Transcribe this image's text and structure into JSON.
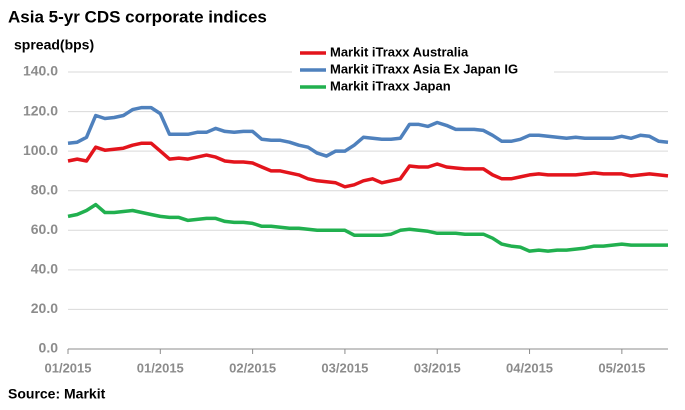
{
  "chart_data": {
    "type": "line",
    "title": "Asia 5-yr CDS corporate indices",
    "y_label": "spread(bps)",
    "source": "Source: Markit",
    "categories": [
      "01/2015",
      null,
      null,
      null,
      null,
      null,
      null,
      null,
      null,
      null,
      "01/2015",
      null,
      null,
      null,
      null,
      null,
      null,
      null,
      null,
      null,
      "02/2015",
      null,
      null,
      null,
      null,
      null,
      null,
      null,
      null,
      null,
      "03/2015",
      null,
      null,
      null,
      null,
      null,
      null,
      null,
      null,
      null,
      "03/2015",
      null,
      null,
      null,
      null,
      null,
      null,
      null,
      null,
      null,
      "04/2015",
      null,
      null,
      null,
      null,
      null,
      null,
      null,
      null,
      null,
      "05/2015",
      null,
      null,
      null,
      null,
      null
    ],
    "series": [
      {
        "name": "Markit iTraxx Australia",
        "color": "#e3141c",
        "values": [
          95,
          96,
          95,
          102,
          100.5,
          101,
          101.5,
          103,
          104,
          104,
          100,
          96,
          96.5,
          96,
          97,
          98,
          97,
          95,
          94.5,
          94.5,
          94,
          92,
          90,
          90,
          89,
          88,
          86,
          85,
          84.5,
          84,
          82,
          83,
          85,
          86,
          84,
          85,
          86,
          92.5,
          92,
          92,
          93.5,
          92,
          91.5,
          91,
          91,
          91,
          88,
          86,
          86,
          87,
          88,
          88.5,
          88,
          88,
          88,
          88,
          88.5,
          89,
          88.5,
          88.5,
          88.5,
          87.5,
          88,
          88.5,
          88,
          87.5
        ]
      },
      {
        "name": "Markit iTraxx Asia Ex Japan IG",
        "color": "#4f81bd",
        "values": [
          104,
          104.5,
          107,
          118,
          116.5,
          117,
          118,
          121,
          122,
          122,
          119,
          108.5,
          108.5,
          108.5,
          109.5,
          109.5,
          111.5,
          110,
          109.5,
          110,
          110,
          106,
          105.5,
          105.5,
          104.5,
          103,
          102,
          99,
          97.5,
          100,
          100,
          103,
          107,
          106.5,
          106,
          106,
          106.5,
          113.5,
          113.5,
          112.5,
          114.5,
          113,
          111,
          111,
          111,
          110.5,
          108,
          105,
          105,
          106,
          108,
          108,
          107.5,
          107,
          106.5,
          107,
          106.5,
          106.5,
          106.5,
          106.5,
          107.5,
          106.5,
          108,
          107.5,
          105,
          104.5
        ]
      },
      {
        "name": "Markit iTraxx Japan",
        "color": "#21b04f",
        "values": [
          67,
          68,
          70,
          73,
          69,
          69,
          69.5,
          70,
          69,
          68,
          67,
          66.5,
          66.5,
          65,
          65.5,
          66,
          66,
          64.5,
          64,
          64,
          63.5,
          62,
          62,
          61.5,
          61,
          61,
          60.5,
          60,
          60,
          60,
          60,
          57.5,
          57.5,
          57.5,
          57.5,
          58,
          60,
          60.5,
          60,
          59.5,
          58.5,
          58.5,
          58.5,
          58,
          58,
          58,
          56,
          53,
          52,
          51.5,
          49.5,
          50,
          49.5,
          50,
          50,
          50.5,
          51,
          52,
          52,
          52.5,
          53,
          52.5,
          52.5,
          52.5,
          52.5,
          52.5
        ]
      }
    ],
    "ylim": [
      0,
      140
    ],
    "yticks": [
      {
        "value": 0,
        "label": "0.0"
      },
      {
        "value": 20,
        "label": "20.0"
      },
      {
        "value": 40,
        "label": "40.0"
      },
      {
        "value": 60,
        "label": "60.0"
      },
      {
        "value": 80,
        "label": "80.0"
      },
      {
        "value": 100,
        "label": "100.0"
      },
      {
        "value": 120,
        "label": "120.0"
      },
      {
        "value": 140,
        "label": "140.0"
      }
    ],
    "grid": true,
    "legend": "upper center"
  }
}
